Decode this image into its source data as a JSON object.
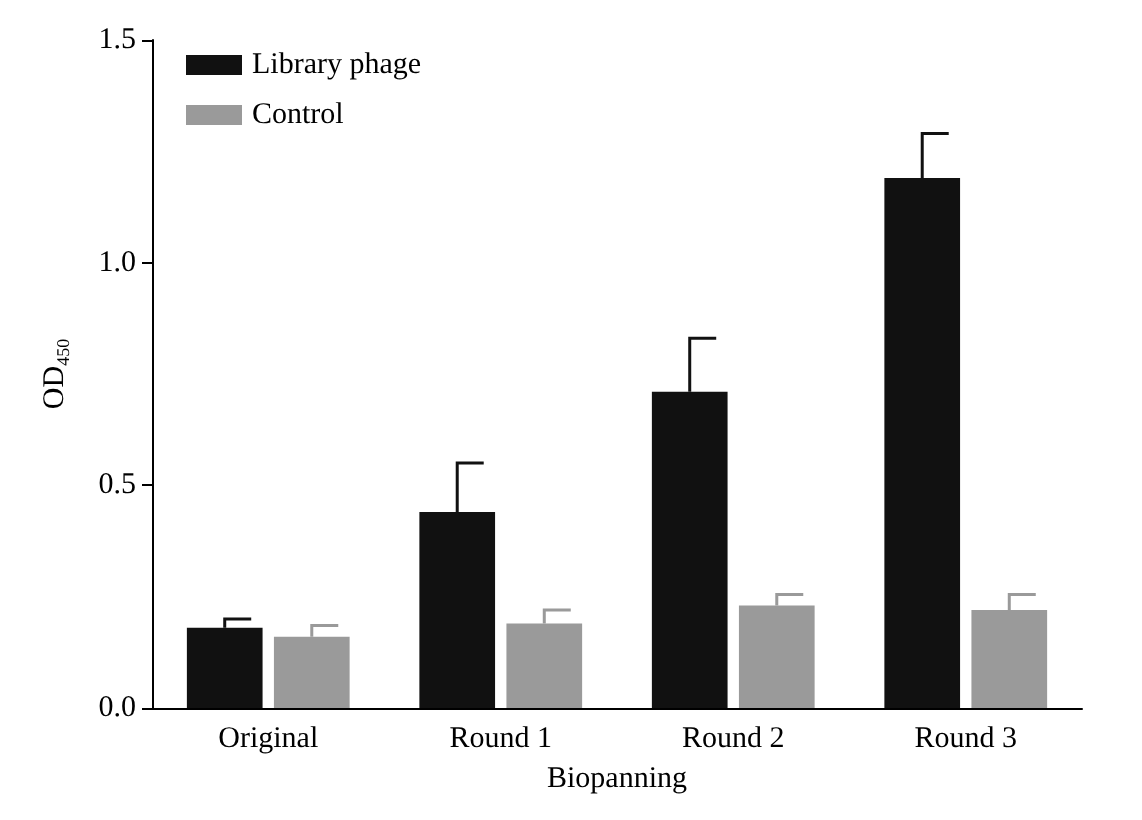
{
  "chart_data": {
    "type": "bar",
    "ylabel": "OD$_{450}$",
    "xlabel": "Biopanning",
    "categories": [
      "Original",
      "Round 1",
      "Round 2",
      "Round 3"
    ],
    "series": [
      {
        "name": "Library phage",
        "color": "#111111",
        "values": [
          0.18,
          0.44,
          0.71,
          1.19
        ],
        "errors": [
          [
            0.18,
            0.2
          ],
          [
            0.44,
            0.55
          ],
          [
            0.71,
            0.83
          ],
          [
            1.19,
            1.29
          ]
        ]
      },
      {
        "name": "Control",
        "color": "#9a9a9a",
        "values": [
          0.16,
          0.19,
          0.23,
          0.22
        ],
        "errors": [
          [
            0.16,
            0.185
          ],
          [
            0.19,
            0.22
          ],
          [
            0.23,
            0.255
          ],
          [
            0.22,
            0.255
          ]
        ]
      }
    ],
    "ylim": [
      0,
      1.5
    ],
    "yticks": [
      {
        "value": 0,
        "label": "0.0"
      },
      0.5,
      {
        "value": 1,
        "label": "1.0"
      },
      1.5
    ],
    "grid": false,
    "legend": "top left"
  }
}
